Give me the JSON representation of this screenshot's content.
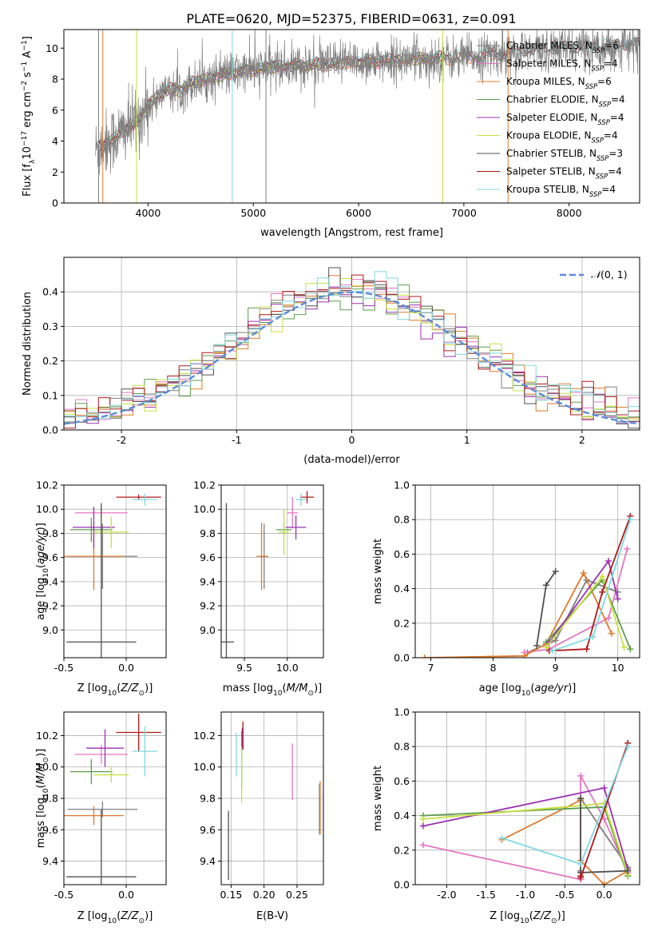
{
  "colors": {
    "Chabrier MILES": "#7f7f7f",
    "Salpeter MILES": "#e377c2",
    "Kroupa MILES": "#e07a2c",
    "Chabrier ELODIE": "#5c9e4a",
    "Salpeter ELODIE": "#9a32b0",
    "Kroupa ELODIE": "#c8e040",
    "Chabrier STELIB": "#505050",
    "Salpeter STELIB": "#b01818",
    "Kroupa STELIB": "#80d8e0",
    "normal": "#5b8bd8"
  },
  "legend": [
    {
      "model": "Chabrier MILES",
      "ssp": "6"
    },
    {
      "model": "Salpeter MILES",
      "ssp": "4"
    },
    {
      "model": "Kroupa MILES",
      "ssp": "6"
    },
    {
      "model": "Chabrier ELODIE",
      "ssp": "4"
    },
    {
      "model": "Salpeter ELODIE",
      "ssp": "4"
    },
    {
      "model": "Kroupa ELODIE",
      "ssp": "4"
    },
    {
      "model": "Chabrier STELIB",
      "ssp": "3"
    },
    {
      "model": "Salpeter STELIB",
      "ssp": "4"
    },
    {
      "model": "Kroupa STELIB",
      "ssp": "4"
    }
  ],
  "chart_data": [
    {
      "id": "spectrum",
      "type": "line",
      "title": "PLATE=0620, MJD=52375, FIBERID=0631, z=0.091",
      "xlabel": "wavelength [Angstrom, rest frame]",
      "ylabel": "Flux [f_λ10^-17 erg cm^-2 s^-1 A^-1]",
      "xlim": [
        3200,
        8670
      ],
      "ylim": [
        0,
        11.2
      ],
      "xticks": [
        4000,
        5000,
        6000,
        7000,
        8000
      ],
      "yticks": [
        0,
        2,
        4,
        6,
        8,
        10
      ],
      "continuum": {
        "x": [
          3500,
          3600,
          3700,
          3800,
          3900,
          4000,
          4100,
          4200,
          4300,
          4400,
          4500,
          4600,
          4800,
          5000,
          5200,
          5500,
          5800,
          6000,
          6300,
          6600,
          7000,
          7300,
          7600,
          8000,
          8300,
          8670
        ],
        "y": [
          3.4,
          3.9,
          4.3,
          4.8,
          5.3,
          6.2,
          7.0,
          7.3,
          7.3,
          7.7,
          7.9,
          8.1,
          8.4,
          8.6,
          8.8,
          8.9,
          9.0,
          9.1,
          9.2,
          9.3,
          9.4,
          9.6,
          9.8,
          10.0,
          10.1,
          10.2
        ]
      }
    },
    {
      "id": "residuals",
      "type": "histogram",
      "xlabel": "(data-model)/error",
      "ylabel": "Normed distribution",
      "xlim": [
        -2.5,
        2.5
      ],
      "ylim": [
        0,
        0.5
      ],
      "xticks": [
        -2,
        -1,
        0,
        1,
        2
      ],
      "yticks": [
        0.0,
        0.1,
        0.2,
        0.3,
        0.4
      ],
      "reference": "N(0,1)"
    },
    {
      "id": "age_vs_Z",
      "type": "scatter",
      "xlabel": "Z [log10(Z/Z☉)]",
      "ylabel": "age [log10(age/yr)]",
      "xlim": [
        -0.5,
        0.32
      ],
      "ylim": [
        8.77,
        10.2
      ],
      "xticks": [
        -0.5,
        0.0
      ],
      "yticks": [
        9.0,
        9.2,
        9.4,
        9.6,
        9.8,
        10.0,
        10.2
      ],
      "points": [
        {
          "model": "Chabrier MILES",
          "x": -0.19,
          "y": 9.61,
          "xerr": 0.28,
          "yerr": 0.27
        },
        {
          "model": "Salpeter MILES",
          "x": -0.2,
          "y": 9.97,
          "xerr": 0.21,
          "yerr": 0.04
        },
        {
          "model": "Kroupa MILES",
          "x": -0.26,
          "y": 9.61,
          "xerr": 0.24,
          "yerr": 0.28
        },
        {
          "model": "Chabrier ELODIE",
          "x": -0.28,
          "y": 9.83,
          "xerr": 0.17,
          "yerr": 0.1
        },
        {
          "model": "Salpeter ELODIE",
          "x": -0.26,
          "y": 9.85,
          "xerr": 0.17,
          "yerr": 0.17
        },
        {
          "model": "Kroupa ELODIE",
          "x": -0.12,
          "y": 9.81,
          "xerr": 0.14,
          "yerr": 0.13
        },
        {
          "model": "Chabrier STELIB",
          "x": -0.2,
          "y": 8.9,
          "xerr": 0.28,
          "yerr": 1.15
        },
        {
          "model": "Salpeter STELIB",
          "x": 0.1,
          "y": 10.1,
          "xerr": 0.18,
          "yerr": 0.02
        },
        {
          "model": "Kroupa STELIB",
          "x": 0.15,
          "y": 10.08,
          "xerr": 0.1,
          "yerr": 0.05
        }
      ]
    },
    {
      "id": "age_vs_mass",
      "type": "scatter",
      "xlabel": "mass [log10(M/M☉)]",
      "ylabel": "",
      "xlim": [
        9.23,
        10.42
      ],
      "ylim": [
        8.77,
        10.2
      ],
      "xticks": [
        9.5,
        10.0
      ],
      "yticks": [
        9.0,
        9.2,
        9.4,
        9.6,
        9.8,
        10.0,
        10.2
      ],
      "points": [
        {
          "model": "Chabrier MILES",
          "x": 9.73,
          "y": 9.61,
          "xerr": 0.05,
          "yerr": 0.27
        },
        {
          "model": "Salpeter MILES",
          "x": 10.06,
          "y": 9.97,
          "xerr": 0.06,
          "yerr": 0.13
        },
        {
          "model": "Kroupa MILES",
          "x": 9.7,
          "y": 9.61,
          "xerr": 0.06,
          "yerr": 0.28
        },
        {
          "model": "Chabrier ELODIE",
          "x": 9.96,
          "y": 9.83,
          "xerr": 0.09,
          "yerr": 0.05
        },
        {
          "model": "Salpeter ELODIE",
          "x": 10.1,
          "y": 9.85,
          "xerr": 0.12,
          "yerr": 0.1
        },
        {
          "model": "Kroupa ELODIE",
          "x": 9.96,
          "y": 9.81,
          "xerr": 0.06,
          "yerr": 0.19
        },
        {
          "model": "Chabrier STELIB",
          "x": 9.29,
          "y": 8.9,
          "xerr": 0.09,
          "yerr": 1.15
        },
        {
          "model": "Salpeter STELIB",
          "x": 10.23,
          "y": 10.1,
          "xerr": 0.08,
          "yerr": 0.05
        },
        {
          "model": "Kroupa STELIB",
          "x": 10.16,
          "y": 10.08,
          "xerr": 0.06,
          "yerr": 0.05
        }
      ]
    },
    {
      "id": "mass_weight_vs_age",
      "type": "line",
      "xlabel": "age [log10(age/yr)]",
      "ylabel": "mass weight",
      "xlim": [
        6.75,
        10.35
      ],
      "ylim": [
        0,
        1
      ],
      "xticks": [
        7,
        8,
        9,
        10
      ],
      "yticks": [
        0.0,
        0.2,
        0.4,
        0.6,
        0.8,
        1.0
      ],
      "series": [
        {
          "model": "Chabrier MILES",
          "x": [
            8.55,
            9.0,
            9.5,
            10.0
          ],
          "y": [
            0.03,
            0.1,
            0.45,
            0.38
          ]
        },
        {
          "model": "Salpeter MILES",
          "x": [
            8.5,
            8.9,
            9.85,
            10.15
          ],
          "y": [
            0.03,
            0.05,
            0.23,
            0.63
          ]
        },
        {
          "model": "Kroupa MILES",
          "x": [
            6.9,
            8.5,
            8.85,
            9.45,
            9.9
          ],
          "y": [
            0.0,
            0.01,
            0.08,
            0.49,
            0.14
          ]
        },
        {
          "model": "Chabrier ELODIE",
          "x": [
            8.85,
            9.75,
            10.2
          ],
          "y": [
            0.09,
            0.45,
            0.05
          ]
        },
        {
          "model": "Salpeter ELODIE",
          "x": [
            8.9,
            9.85,
            10.0
          ],
          "y": [
            0.09,
            0.56,
            0.34
          ]
        },
        {
          "model": "Kroupa ELODIE",
          "x": [
            8.85,
            9.75,
            10.1
          ],
          "y": [
            0.06,
            0.47,
            0.06
          ]
        },
        {
          "model": "Chabrier STELIB",
          "x": [
            8.7,
            8.85,
            9.0
          ],
          "y": [
            0.07,
            0.42,
            0.5
          ]
        },
        {
          "model": "Salpeter STELIB",
          "x": [
            8.9,
            9.5,
            9.75,
            10.2
          ],
          "y": [
            0.04,
            0.05,
            0.38,
            0.82
          ]
        },
        {
          "model": "Kroupa STELIB",
          "x": [
            8.95,
            9.6,
            10.2
          ],
          "y": [
            0.04,
            0.12,
            0.8
          ]
        }
      ]
    },
    {
      "id": "mass_vs_Z",
      "type": "scatter",
      "xlabel": "Z [log10(Z/Z☉)]",
      "ylabel": "mass [log10(M/M☉)]",
      "xlim": [
        -0.5,
        0.32
      ],
      "ylim": [
        9.25,
        10.35
      ],
      "xticks": [
        -0.5,
        0.0
      ],
      "yticks": [
        9.4,
        9.6,
        9.8,
        10.0,
        10.2
      ],
      "points": [
        {
          "model": "Chabrier MILES",
          "x": -0.19,
          "y": 9.73,
          "xerr": 0.28,
          "yerr": 0.05
        },
        {
          "model": "Salpeter MILES",
          "x": -0.2,
          "y": 10.08,
          "xerr": 0.21,
          "yerr": 0.06
        },
        {
          "model": "Kroupa MILES",
          "x": -0.26,
          "y": 9.69,
          "xerr": 0.24,
          "yerr": 0.06
        },
        {
          "model": "Chabrier ELODIE",
          "x": -0.28,
          "y": 9.97,
          "xerr": 0.17,
          "yerr": 0.08
        },
        {
          "model": "Salpeter ELODIE",
          "x": -0.17,
          "y": 10.12,
          "xerr": 0.15,
          "yerr": 0.12
        },
        {
          "model": "Kroupa ELODIE",
          "x": -0.12,
          "y": 9.95,
          "xerr": 0.14,
          "yerr": 0.05
        },
        {
          "model": "Chabrier STELIB",
          "x": -0.2,
          "y": 9.3,
          "xerr": 0.28,
          "yerr": 0.43
        },
        {
          "model": "Salpeter STELIB",
          "x": 0.1,
          "y": 10.22,
          "xerr": 0.18,
          "yerr": 0.12
        },
        {
          "model": "Kroupa STELIB",
          "x": 0.15,
          "y": 10.1,
          "xerr": 0.1,
          "yerr": 0.16
        }
      ]
    },
    {
      "id": "mass_vs_ebv",
      "type": "scatter",
      "xlabel": "E(B-V)",
      "ylabel": "",
      "xlim": [
        0.135,
        0.29
      ],
      "ylim": [
        9.25,
        10.35
      ],
      "xticks": [
        0.15,
        0.2,
        0.25
      ],
      "yticks": [
        9.4,
        9.6,
        9.8,
        10.0,
        10.2
      ],
      "points": [
        {
          "model": "Chabrier MILES",
          "x": 0.284,
          "y": 9.73,
          "xerr": 0,
          "yerr": 0.16
        },
        {
          "model": "Salpeter MILES",
          "x": 0.243,
          "y": 9.97,
          "xerr": 0,
          "yerr": 0.18
        },
        {
          "model": "Kroupa MILES",
          "x": 0.285,
          "y": 9.74,
          "xerr": 0,
          "yerr": 0.17
        },
        {
          "model": "Chabrier ELODIE",
          "x": 0.166,
          "y": 10.05,
          "xerr": 0,
          "yerr": 0.18
        },
        {
          "model": "Salpeter ELODIE",
          "x": 0.167,
          "y": 10.18,
          "xerr": 0,
          "yerr": 0.07
        },
        {
          "model": "Kroupa ELODIE",
          "x": 0.166,
          "y": 9.95,
          "xerr": 0,
          "yerr": 0.18
        },
        {
          "model": "Chabrier STELIB",
          "x": 0.146,
          "y": 9.5,
          "xerr": 0,
          "yerr": 0.22
        },
        {
          "model": "Salpeter STELIB",
          "x": 0.168,
          "y": 10.2,
          "xerr": 0,
          "yerr": 0.09
        },
        {
          "model": "Kroupa STELIB",
          "x": 0.158,
          "y": 10.08,
          "xerr": 0,
          "yerr": 0.14
        }
      ]
    },
    {
      "id": "mass_weight_vs_Z",
      "type": "line",
      "xlabel": "Z [log10(Z/Z☉)]",
      "ylabel": "mass weight",
      "xlim": [
        -2.4,
        0.45
      ],
      "ylim": [
        0,
        1
      ],
      "xticks": [
        -2.0,
        -1.5,
        -1.0,
        -0.5,
        0.0
      ],
      "yticks": [
        0.0,
        0.2,
        0.4,
        0.6,
        0.8,
        1.0
      ],
      "series": [
        {
          "model": "Chabrier MILES",
          "x": [
            -0.3,
            -0.3,
            0.3
          ],
          "y": [
            0.08,
            0.5,
            0.1
          ]
        },
        {
          "model": "Salpeter MILES",
          "x": [
            -2.3,
            -0.3,
            -0.3,
            0.0,
            0.3
          ],
          "y": [
            0.23,
            0.03,
            0.63,
            0.38,
            0.07
          ]
        },
        {
          "model": "Kroupa MILES",
          "x": [
            -1.3,
            -0.3,
            -0.3,
            0.0,
            0.3
          ],
          "y": [
            0.26,
            0.49,
            0.14,
            0.0,
            0.08
          ]
        },
        {
          "model": "Chabrier ELODIE",
          "x": [
            -2.3,
            0.0,
            0.3
          ],
          "y": [
            0.4,
            0.45,
            0.05
          ]
        },
        {
          "model": "Salpeter ELODIE",
          "x": [
            -2.3,
            0.0,
            0.3
          ],
          "y": [
            0.34,
            0.56,
            0.09
          ]
        },
        {
          "model": "Kroupa ELODIE",
          "x": [
            -2.3,
            0.0,
            0.3
          ],
          "y": [
            0.38,
            0.47,
            0.06
          ]
        },
        {
          "model": "Chabrier STELIB",
          "x": [
            -0.3,
            -0.3,
            0.3
          ],
          "y": [
            0.5,
            0.07,
            0.08
          ]
        },
        {
          "model": "Salpeter STELIB",
          "x": [
            -0.3,
            -0.3,
            0.3
          ],
          "y": [
            0.05,
            0.04,
            0.82
          ]
        },
        {
          "model": "Kroupa STELIB",
          "x": [
            -1.3,
            -0.3,
            0.3
          ],
          "y": [
            0.27,
            0.12,
            0.8
          ]
        }
      ]
    }
  ]
}
